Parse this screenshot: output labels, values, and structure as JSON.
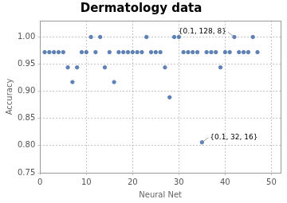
{
  "chart_data": {
    "type": "scatter",
    "title": "Dermatology data",
    "x_label": "Neural Net",
    "y_label": "Accuracy",
    "x": [
      1,
      2,
      3,
      4,
      5,
      6,
      7,
      8,
      9,
      10,
      11,
      12,
      13,
      14,
      15,
      16,
      17,
      18,
      19,
      20,
      21,
      22,
      23,
      24,
      25,
      26,
      27,
      28,
      29,
      30,
      31,
      32,
      33,
      34,
      35,
      36,
      37,
      38,
      39,
      40,
      41,
      42,
      43,
      44,
      45,
      46,
      47
    ],
    "values": [
      0.972,
      0.972,
      0.972,
      0.972,
      0.972,
      0.944,
      0.917,
      0.944,
      0.972,
      0.972,
      1.0,
      0.972,
      1.0,
      0.944,
      0.972,
      0.917,
      0.972,
      0.972,
      0.972,
      0.972,
      0.972,
      0.972,
      1.0,
      0.972,
      0.972,
      0.972,
      0.944,
      0.889,
      1.0,
      1.0,
      0.972,
      0.972,
      0.972,
      0.972,
      0.806,
      0.972,
      0.972,
      0.972,
      0.944,
      0.972,
      0.972,
      1.0,
      0.972,
      0.972,
      0.972,
      1.0,
      0.972
    ],
    "color": "#5e81b5",
    "marker": "circle",
    "xlim": [
      0,
      52
    ],
    "xticks": [
      0,
      10,
      20,
      30,
      40,
      50
    ],
    "ylim": [
      0.75,
      1.03
    ],
    "yticks": [
      {
        "value": 0.75,
        "label": "0.75"
      },
      {
        "value": 0.8,
        "label": "0.80"
      },
      {
        "value": 0.85,
        "label": "0.85"
      },
      {
        "value": 0.9,
        "label": "0.90"
      },
      {
        "value": 0.95,
        "label": "0.95"
      },
      {
        "value": 1.0,
        "label": "1.00"
      }
    ],
    "grid": true,
    "annotations": [
      {
        "text": "{0.1, 128, 8}",
        "x": 42,
        "y": 1.0
      },
      {
        "text": "{0.1, 32, 16}",
        "x": 35,
        "y": 0.806
      }
    ]
  }
}
